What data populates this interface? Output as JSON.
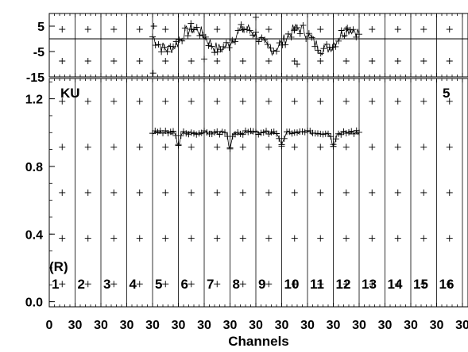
{
  "chart_data": [
    {
      "type": "scatter",
      "panel": "top",
      "title": "",
      "ylim": [
        -15,
        10
      ],
      "yticks": [
        5,
        -5,
        -15
      ],
      "reference_line_y": 0,
      "x_segment_range": [
        5,
        13
      ],
      "y_baseline": 0,
      "y_amplitude": 4,
      "y_noise": 2.5,
      "outliers": [
        {
          "x": 5.02,
          "y": -13.5
        },
        {
          "x": 5.05,
          "y": 5.0
        },
        {
          "x": 7.0,
          "y": -8.0
        },
        {
          "x": 9.0,
          "y": 8.5
        },
        {
          "x": 10.6,
          "y": -10.0
        }
      ]
    },
    {
      "type": "scatter",
      "panel": "bottom",
      "ylabel": "",
      "xlabel": "Channels",
      "ylim": [
        -0.03,
        1.32
      ],
      "yticks": [
        "1.2",
        "0.8",
        "0.4",
        "0.0"
      ],
      "x_segment_range": [
        5,
        13
      ],
      "y_baseline": 1.0,
      "y_noise": 0.012,
      "dips": [
        {
          "x": 6.0,
          "y": 0.93
        },
        {
          "x": 8.0,
          "y": 0.91
        },
        {
          "x": 10.0,
          "y": 0.92
        },
        {
          "x": 12.0,
          "y": 0.93
        }
      ],
      "annotations": {
        "top_left": "KU",
        "top_right": "5",
        "marker": "(R)"
      },
      "channel_labels": [
        "1",
        "2",
        "3",
        "4",
        "5",
        "6",
        "7",
        "8",
        "9",
        "10",
        "11",
        "12",
        "13",
        "14",
        "15",
        "16"
      ],
      "x_tick_labels": [
        "0",
        "30",
        "30",
        "30",
        "30",
        "30",
        "30",
        "30",
        "30",
        "30",
        "30",
        "30",
        "30",
        "30",
        "30",
        "30",
        "30"
      ]
    }
  ]
}
